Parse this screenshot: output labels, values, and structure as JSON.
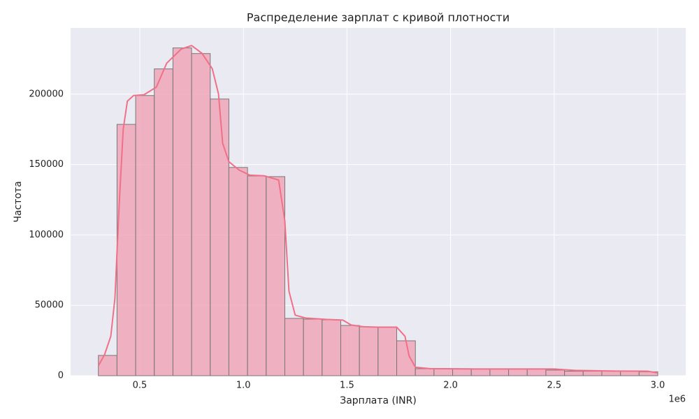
{
  "chart_data": {
    "type": "histogram",
    "title": "Распределение зарплат с кривой плотности",
    "x_label": "Зарплата (INR)",
    "y_label": "Частота",
    "x_offset_label": "1e6",
    "bins": [
      0.3,
      0.39,
      0.48,
      0.57,
      0.66,
      0.75,
      0.84,
      0.93,
      1.02,
      1.11,
      1.2,
      1.29,
      1.38,
      1.47,
      1.56,
      1.65,
      1.74,
      1.83,
      1.92,
      2.01,
      2.1,
      2.19,
      2.28,
      2.37,
      2.46,
      2.55,
      2.64,
      2.73,
      2.82,
      2.91,
      3.0
    ],
    "values": [
      14400,
      178500,
      199000,
      217900,
      232800,
      228800,
      196500,
      147900,
      141900,
      141400,
      40700,
      40200,
      39700,
      35700,
      34700,
      34700,
      24800,
      5000,
      5000,
      5000,
      4800,
      4800,
      4800,
      4800,
      4000,
      3200,
      3200,
      3200,
      3200,
      2800
    ],
    "color": "#f0a3b5",
    "edge_color": "#777777",
    "kde": {
      "type": "line",
      "color": "#f07088",
      "x": [
        0.3,
        0.33,
        0.36,
        0.38,
        0.4,
        0.42,
        0.44,
        0.47,
        0.52,
        0.58,
        0.63,
        0.7,
        0.75,
        0.8,
        0.85,
        0.88,
        0.9,
        0.93,
        0.98,
        1.03,
        1.1,
        1.17,
        1.2,
        1.22,
        1.25,
        1.3,
        1.4,
        1.48,
        1.52,
        1.58,
        1.65,
        1.74,
        1.78,
        1.8,
        1.83,
        1.9,
        2.1,
        2.5,
        2.6,
        2.8,
        2.95,
        3.0
      ],
      "values": [
        7000,
        15000,
        28000,
        55000,
        120000,
        175000,
        195000,
        199000,
        199500,
        205000,
        222000,
        232000,
        234500,
        229000,
        218000,
        200000,
        165000,
        152000,
        146000,
        142500,
        142000,
        139000,
        110000,
        60000,
        43000,
        41000,
        40000,
        39500,
        36000,
        34800,
        34500,
        34500,
        28000,
        14000,
        6000,
        5000,
        4800,
        4800,
        3800,
        3300,
        3200,
        2000
      ]
    },
    "xlim": [
      0.166,
      3.135
    ],
    "ylim": [
      0,
      247000
    ],
    "xticks": [
      0.5,
      {
        "value": 1,
        "label": "1.0"
      },
      1.5,
      {
        "value": 2,
        "label": "2.0"
      },
      2.5,
      {
        "value": 3,
        "label": "3.0"
      }
    ],
    "yticks": [
      0,
      50000,
      100000,
      150000,
      200000
    ],
    "grid": true
  }
}
